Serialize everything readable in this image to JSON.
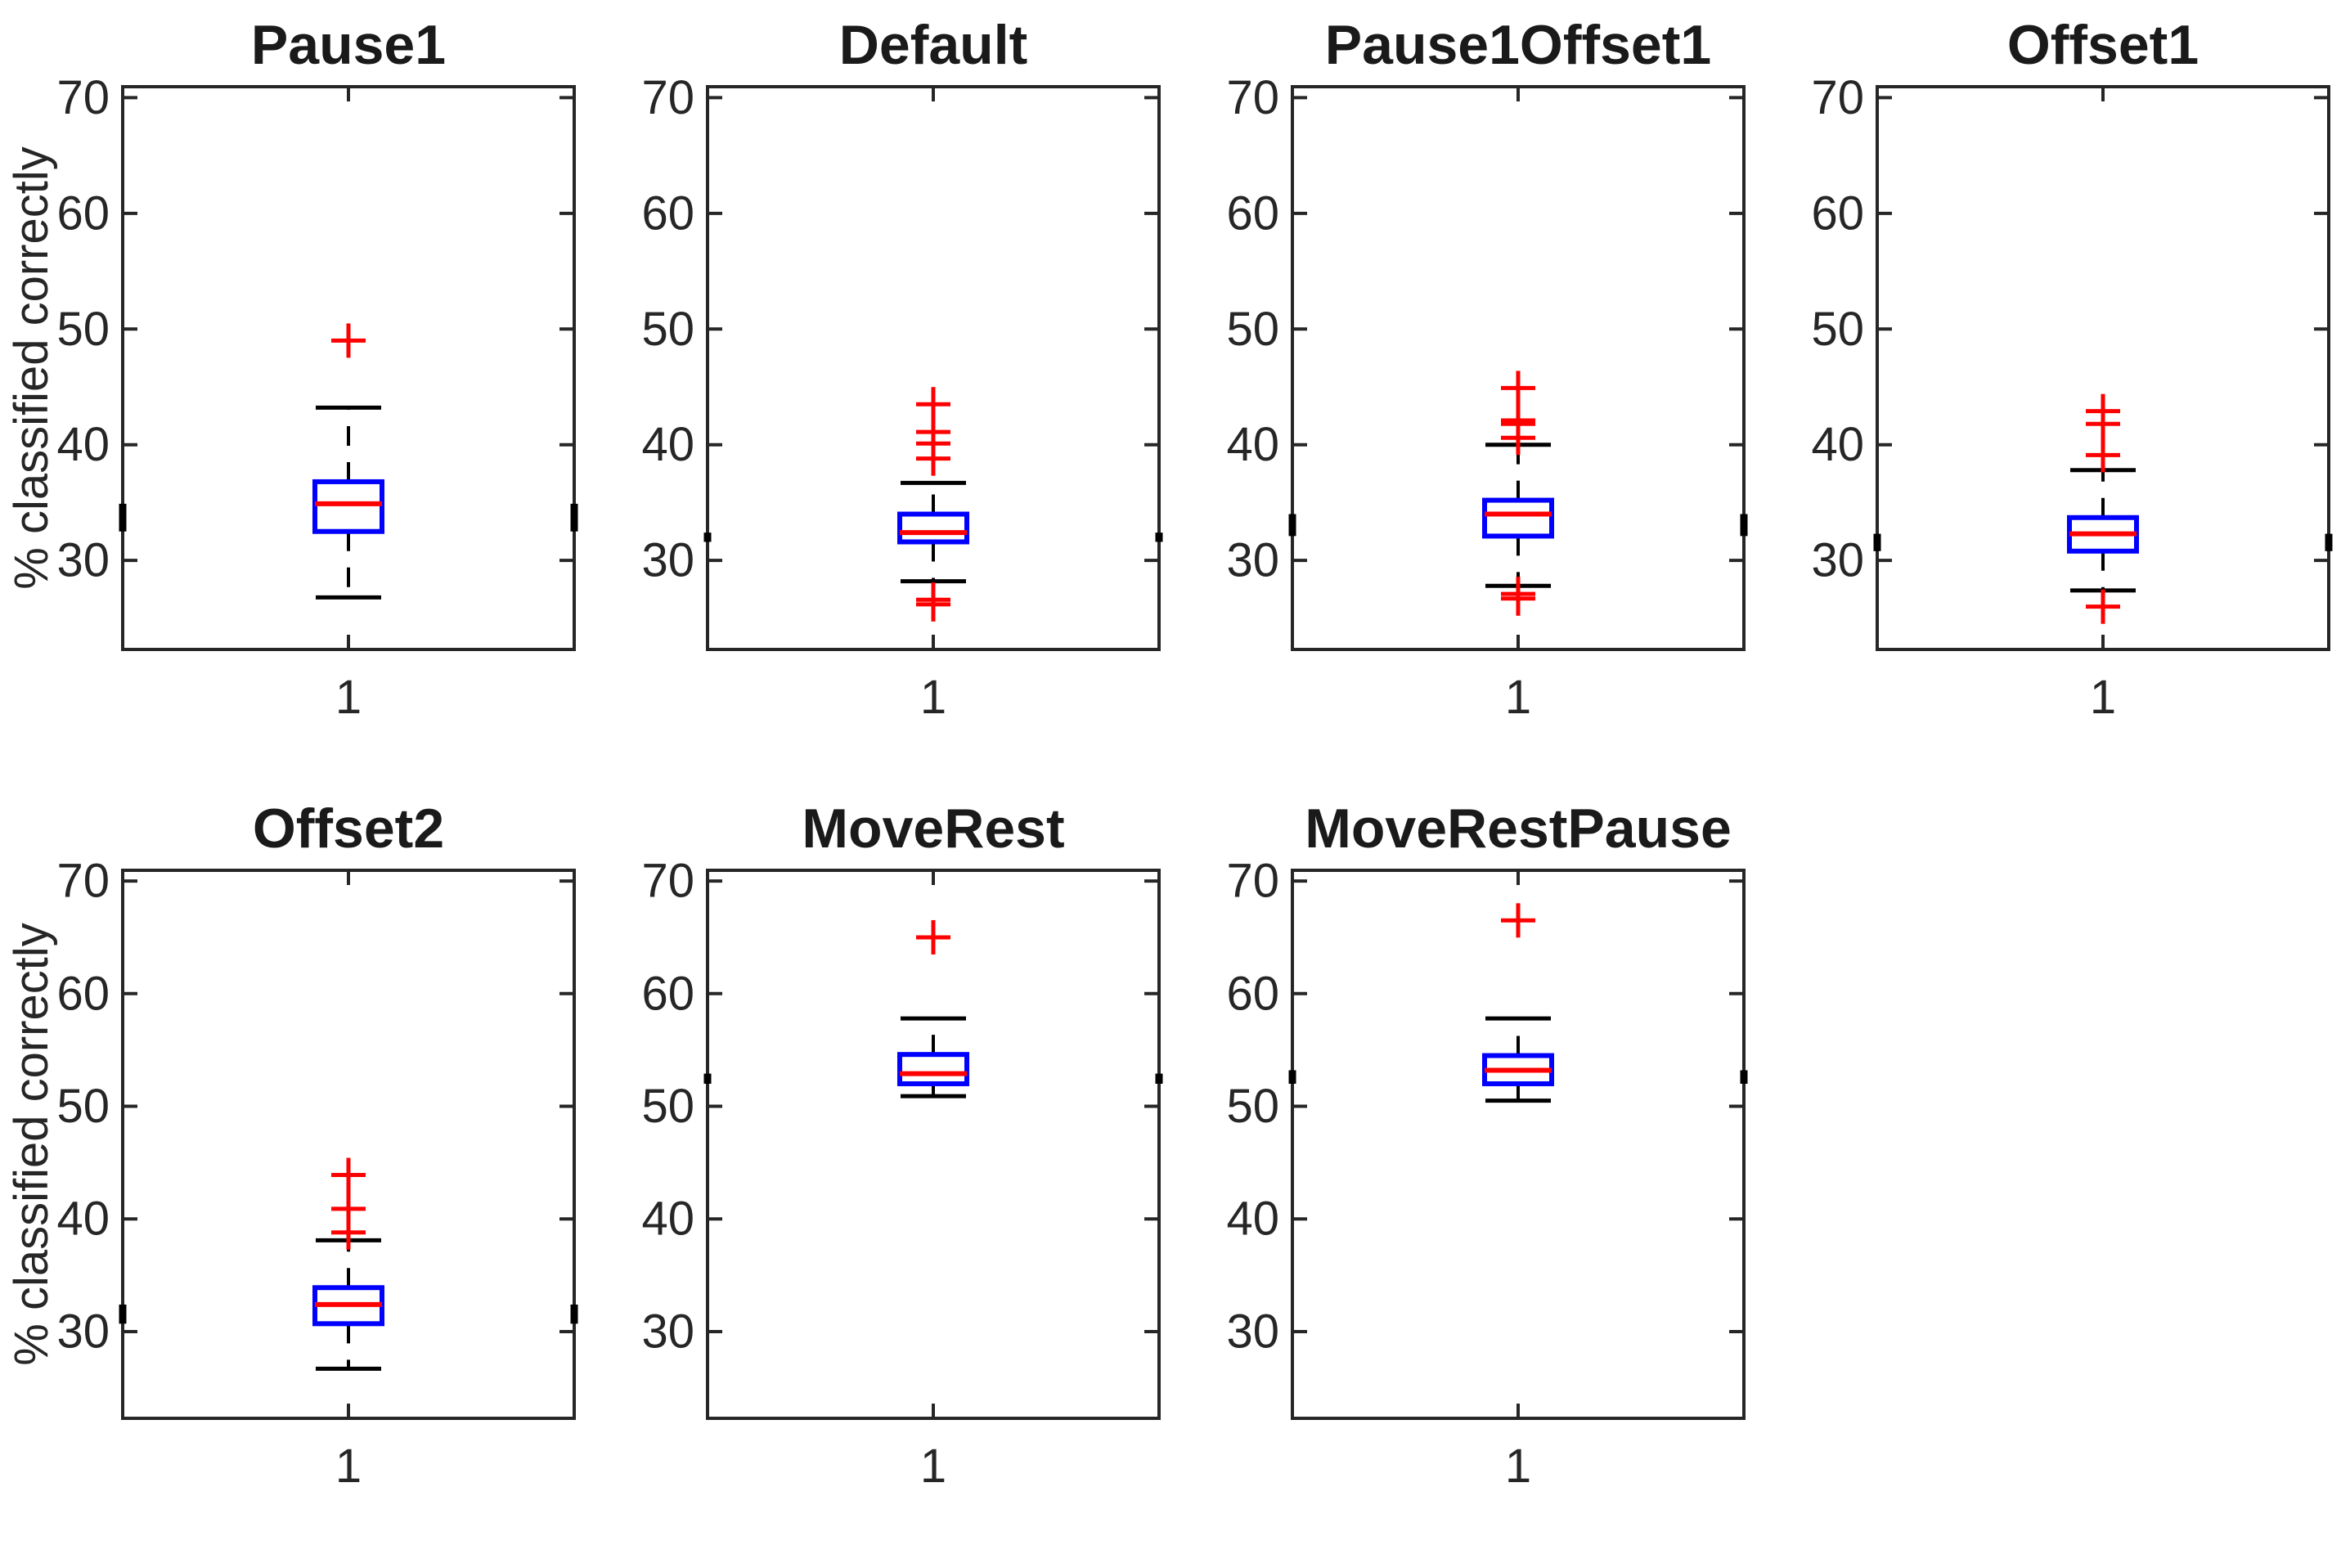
{
  "figure_title": "",
  "chart_data": {
    "type": "boxplot",
    "ylabel": "% classified correctly",
    "x_tick_label": "1",
    "y_ticks": [
      30,
      40,
      50,
      60,
      70
    ],
    "ylim": [
      22.3,
      70.95
    ],
    "legend": "none",
    "grid": false,
    "colors": {
      "box": "#0000ff",
      "median": "#ff0000",
      "outlier": "#ff0000",
      "whisker": "#000000",
      "axis": "#262626",
      "text": "#262626",
      "title": "#1a1a1a",
      "background": "#ffffff"
    },
    "subplots": [
      {
        "title": "Pause1",
        "median": 34.9,
        "q1": 32.5,
        "q3": 36.8,
        "whisker_low": 26.8,
        "whisker_high": 43.2,
        "outliers_high": [
          49.0
        ],
        "outliers_low": []
      },
      {
        "title": "Default",
        "median": 32.4,
        "q1": 31.6,
        "q3": 34.0,
        "whisker_low": 28.2,
        "whisker_high": 36.7,
        "outliers_high": [
          43.5,
          41.1,
          40.1,
          38.8
        ],
        "outliers_low": [
          26.6,
          26.2
        ]
      },
      {
        "title": "Pause1Offset1",
        "median": 34.0,
        "q1": 32.1,
        "q3": 35.2,
        "whisker_low": 27.8,
        "whisker_high": 40.0,
        "outliers_high": [
          44.9,
          42.1,
          41.8,
          40.6
        ],
        "outliers_low": [
          27.1,
          26.7
        ]
      },
      {
        "title": "Offset1",
        "median": 32.3,
        "q1": 30.8,
        "q3": 33.7,
        "whisker_low": 27.4,
        "whisker_high": 37.8,
        "outliers_high": [
          42.9,
          41.8,
          39.1
        ],
        "outliers_low": [
          26.0
        ]
      },
      {
        "title": "Offset2",
        "median": 32.4,
        "q1": 30.7,
        "q3": 33.9,
        "whisker_low": 26.7,
        "whisker_high": 38.1,
        "outliers_high": [
          43.9,
          40.9,
          38.8
        ],
        "outliers_low": []
      },
      {
        "title": "MoveRest",
        "median": 52.9,
        "q1": 52.0,
        "q3": 54.6,
        "whisker_low": 50.9,
        "whisker_high": 57.8,
        "outliers_high": [
          65.0
        ],
        "outliers_low": []
      },
      {
        "title": "MoveRestPause",
        "median": 53.2,
        "q1": 52.0,
        "q3": 54.5,
        "whisker_low": 50.5,
        "whisker_high": 57.8,
        "outliers_high": [
          66.5
        ],
        "outliers_low": []
      }
    ]
  }
}
